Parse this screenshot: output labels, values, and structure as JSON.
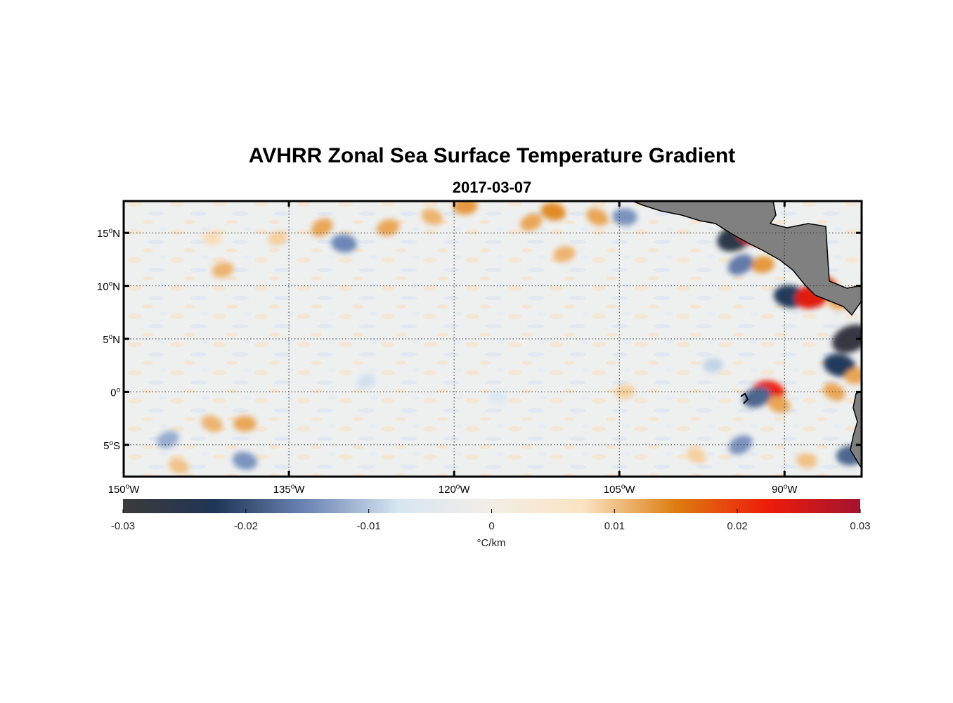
{
  "title": "AVHRR Zonal Sea Surface Temperature Gradient",
  "subtitle": "2017-03-07",
  "map": {
    "lon_range": [
      -150,
      -83
    ],
    "lat_range": [
      -8,
      18
    ],
    "x_ticks": [
      {
        "value": -150,
        "num": "150",
        "hemi": "W"
      },
      {
        "value": -135,
        "num": "135",
        "hemi": "W"
      },
      {
        "value": -120,
        "num": "120",
        "hemi": "W"
      },
      {
        "value": -105,
        "num": "105",
        "hemi": "W"
      },
      {
        "value": -90,
        "num": "90",
        "hemi": "W"
      }
    ],
    "y_ticks": [
      {
        "value": 15,
        "num": "15",
        "hemi": "N"
      },
      {
        "value": 10,
        "num": "10",
        "hemi": "N"
      },
      {
        "value": 5,
        "num": "5",
        "hemi": "N"
      },
      {
        "value": 0,
        "num": "0",
        "hemi": ""
      },
      {
        "value": -5,
        "num": "5",
        "hemi": "S"
      }
    ],
    "degree_symbol": "o",
    "grid": "dotted",
    "land_color": "#808080",
    "features": [
      {
        "lon": -132,
        "lat": 15.5,
        "v": 0.012
      },
      {
        "lon": -130,
        "lat": 14,
        "v": -0.015
      },
      {
        "lon": -126,
        "lat": 15.5,
        "v": 0.012
      },
      {
        "lon": -122,
        "lat": 16.5,
        "v": 0.011
      },
      {
        "lon": -119,
        "lat": 17.5,
        "v": 0.013
      },
      {
        "lon": -113,
        "lat": 16,
        "v": 0.012
      },
      {
        "lon": -111,
        "lat": 17,
        "v": 0.014
      },
      {
        "lon": -110,
        "lat": 13,
        "v": 0.011
      },
      {
        "lon": -107,
        "lat": 16.5,
        "v": 0.012
      },
      {
        "lon": -104.5,
        "lat": 16.5,
        "v": -0.014
      },
      {
        "lon": -94.5,
        "lat": 14.5,
        "v": -0.026
      },
      {
        "lon": -93,
        "lat": 15,
        "v": 0.022
      },
      {
        "lon": -92,
        "lat": 12,
        "v": 0.013
      },
      {
        "lon": -94,
        "lat": 12,
        "v": -0.016
      },
      {
        "lon": -89.5,
        "lat": 9,
        "v": -0.022
      },
      {
        "lon": -87.5,
        "lat": 9,
        "v": 0.024
      },
      {
        "lon": -86.5,
        "lat": 10,
        "v": 0.02
      },
      {
        "lon": -85,
        "lat": 8.5,
        "v": 0.012
      },
      {
        "lon": -84,
        "lat": 5,
        "v": -0.028
      },
      {
        "lon": -85,
        "lat": 2.5,
        "v": -0.022
      },
      {
        "lon": -83.5,
        "lat": 1.5,
        "v": 0.012
      },
      {
        "lon": -85.5,
        "lat": 0,
        "v": 0.012
      },
      {
        "lon": -91.5,
        "lat": 0,
        "v": 0.022
      },
      {
        "lon": -92.5,
        "lat": -0.5,
        "v": -0.018
      },
      {
        "lon": -90.5,
        "lat": -1.2,
        "v": 0.012
      },
      {
        "lon": -84,
        "lat": -6,
        "v": -0.018
      },
      {
        "lon": -94,
        "lat": -5,
        "v": -0.014
      },
      {
        "lon": -88,
        "lat": -6.5,
        "v": 0.01
      },
      {
        "lon": -141,
        "lat": 11.5,
        "v": 0.011
      },
      {
        "lon": -142,
        "lat": -3,
        "v": 0.011
      },
      {
        "lon": -139,
        "lat": -3,
        "v": 0.012
      },
      {
        "lon": -146,
        "lat": -4.5,
        "v": -0.012
      },
      {
        "lon": -139,
        "lat": -6.5,
        "v": -0.014
      },
      {
        "lon": -104.5,
        "lat": 0,
        "v": 0.009
      },
      {
        "lon": -98,
        "lat": -6,
        "v": 0.009
      },
      {
        "lon": -142,
        "lat": 14.5,
        "v": 0.008
      },
      {
        "lon": -136,
        "lat": 14.5,
        "v": 0.009
      },
      {
        "lon": -145,
        "lat": -7,
        "v": 0.01
      },
      {
        "lon": -96.5,
        "lat": 2.5,
        "v": -0.009
      },
      {
        "lon": -128,
        "lat": 1,
        "v": -0.008
      },
      {
        "lon": -116,
        "lat": -0.5,
        "v": -0.007
      }
    ]
  },
  "colorbar": {
    "ticks": [
      "-0.03",
      "-0.02",
      "-0.01",
      "0",
      "0.01",
      "0.02",
      "0.03"
    ],
    "vmin": -0.03,
    "vmax": 0.03,
    "unit": "°C/km",
    "colors": [
      "#3b3b3b",
      "#1f3556",
      "#6d86b5",
      "#d8e6f2",
      "#f3eee6",
      "#fbe3c2",
      "#dd7d10",
      "#ee1b0a",
      "#a2142f"
    ]
  }
}
